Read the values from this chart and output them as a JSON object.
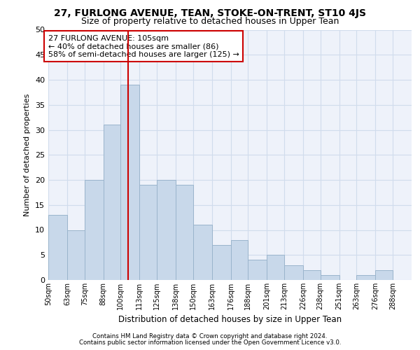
{
  "title": "27, FURLONG AVENUE, TEAN, STOKE-ON-TRENT, ST10 4JS",
  "subtitle": "Size of property relative to detached houses in Upper Tean",
  "xlabel": "Distribution of detached houses by size in Upper Tean",
  "ylabel": "Number of detached properties",
  "bar_color": "#c8d8ea",
  "bar_edgecolor": "#9ab4cc",
  "grid_color": "#d0dcec",
  "vline_x": 105,
  "vline_color": "#cc0000",
  "annotation_text": "27 FURLONG AVENUE: 105sqm\n← 40% of detached houses are smaller (86)\n58% of semi-detached houses are larger (125) →",
  "annotation_box_color": "white",
  "annotation_box_edgecolor": "#cc0000",
  "footer1": "Contains HM Land Registry data © Crown copyright and database right 2024.",
  "footer2": "Contains public sector information licensed under the Open Government Licence v3.0.",
  "bins": [
    50,
    63,
    75,
    88,
    100,
    113,
    125,
    138,
    150,
    163,
    176,
    188,
    201,
    213,
    226,
    238,
    251,
    263,
    276,
    288,
    301
  ],
  "counts": [
    13,
    10,
    20,
    31,
    39,
    19,
    20,
    19,
    11,
    7,
    8,
    4,
    5,
    3,
    2,
    1,
    0,
    1,
    2,
    0
  ],
  "ylim": [
    0,
    50
  ],
  "yticks": [
    0,
    5,
    10,
    15,
    20,
    25,
    30,
    35,
    40,
    45,
    50
  ],
  "background_color": "#eef2fa",
  "fig_width": 6.0,
  "fig_height": 5.0,
  "title_fontsize": 10,
  "subtitle_fontsize": 9
}
